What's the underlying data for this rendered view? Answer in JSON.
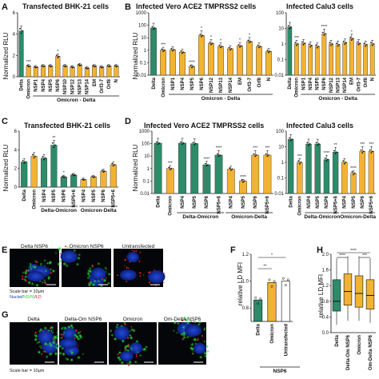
{
  "colors": {
    "green": "#2e8b6a",
    "yellow": "#f2b233",
    "nucleus": "#1a3db8",
    "nsp": "#2bd23a",
    "ld": "#e0222e"
  },
  "legend": {
    "nuclei": "Nuclei",
    "nsp": "NSP6",
    "ld": "LD",
    "slash": "/"
  },
  "scale_bar": "Scale bar = 10μm",
  "panels": {
    "A": {
      "letter": "A",
      "title": "Transfected BHK-21 cells",
      "ylabel": "Normalized RLU",
      "group": "Omicron - Delta"
    },
    "B": {
      "letter": "B",
      "title": "Infected Vero ACE2 TMPRSS2 cells",
      "ylabel": "Normalized RLU",
      "group": "Omicron - Delta"
    },
    "B2": {
      "title": "Infected Calu3 cells",
      "group": "Omicron - Delta"
    },
    "C": {
      "letter": "C",
      "title": "Transfected BHK-21 cells",
      "ylabel": "Normalized RLU",
      "group1": "Delta-Omicron",
      "group2": "Omicron-Delta"
    },
    "D": {
      "letter": "D",
      "title": "Infected Vero ACE2 TMPRSS2 cells",
      "ylabel": "Normalized RLU",
      "group1": "Delta-Omicron",
      "group2": "Omicron-Delta"
    },
    "D2": {
      "title": "Infected Calu3 cells",
      "group1": "Delta-Omicron",
      "group2": "Omicron-Delta"
    },
    "E": {
      "letter": "E",
      "labels": [
        "Delta NSP6",
        "Omicron NSP6",
        "Untransfected"
      ]
    },
    "F": {
      "letter": "F",
      "ylabel": "relative LD MFI",
      "group": "NSP6"
    },
    "G": {
      "letter": "G",
      "labels": [
        "Delta",
        "Delta-Om NSP6",
        "Omicron",
        "Om-Delta NSP6"
      ]
    },
    "H": {
      "letter": "H",
      "ylabel": "relative LD MFI"
    }
  },
  "chart_data": [
    {
      "id": "A",
      "type": "bar",
      "yscale": "linear",
      "ylim": [
        0,
        6
      ],
      "yticks": [
        0,
        2,
        4,
        6
      ],
      "categories": [
        "Delta",
        "Omicron",
        "NSP1",
        "NSP4",
        "NSP5",
        "NSP6",
        "NSP10",
        "NSP12",
        "NSP13",
        "NSP14",
        "EM",
        "Orf3-7",
        "Orf8",
        "N"
      ],
      "values": [
        4.3,
        1.0,
        0.9,
        1.0,
        1.0,
        1.9,
        1.0,
        0.9,
        1.1,
        0.8,
        1.0,
        0.9,
        1.0,
        1.0
      ],
      "colors": [
        "green",
        "yellow",
        "yellow",
        "yellow",
        "yellow",
        "yellow",
        "yellow",
        "yellow",
        "yellow",
        "yellow",
        "yellow",
        "yellow",
        "yellow",
        "yellow"
      ],
      "stars": [
        "",
        "***",
        "",
        "",
        "",
        "*",
        "",
        "",
        "",
        "",
        "",
        "",
        "",
        ""
      ]
    },
    {
      "id": "B",
      "type": "bar",
      "yscale": "log",
      "ylim": [
        0.01,
        1000
      ],
      "yticks": [
        0.01,
        0.1,
        1,
        10,
        100,
        1000
      ],
      "categories": [
        "Delta",
        "Omicron",
        "NSP1",
        "NSP4",
        "NSP5",
        "NSP6",
        "NSP12",
        "NSP13",
        "NSP14",
        "EM",
        "Orf3-7",
        "Orf8",
        "N"
      ],
      "values": [
        60,
        1.0,
        1.1,
        0.7,
        0.05,
        15,
        3.5,
        2.0,
        1.3,
        2.2,
        5,
        2.0,
        0.8
      ],
      "colors": [
        "green",
        "yellow",
        "yellow",
        "yellow",
        "yellow",
        "yellow",
        "yellow",
        "yellow",
        "yellow",
        "yellow",
        "yellow",
        "yellow",
        "yellow"
      ],
      "stars": [
        "",
        "***",
        "",
        "",
        "****",
        "*",
        "*",
        "*",
        "",
        "*",
        "*",
        "",
        ""
      ]
    },
    {
      "id": "B2",
      "type": "bar",
      "yscale": "log",
      "ylim": [
        0.01,
        100
      ],
      "yticks": [
        0.01,
        0.1,
        1,
        10,
        100
      ],
      "categories": [
        "Delta",
        "Omicron",
        "NSP1",
        "NSP4",
        "NSP5",
        "NSP6",
        "NSP12",
        "NSP13",
        "NSP14",
        "EM",
        "Orf3-7",
        "Orf8",
        "N"
      ],
      "values": [
        12,
        1.0,
        1.1,
        0.8,
        0.7,
        4.5,
        1.0,
        0.9,
        1.2,
        2.2,
        1.1,
        0.9,
        1.0
      ],
      "colors": [
        "green",
        "yellow",
        "yellow",
        "yellow",
        "yellow",
        "yellow",
        "yellow",
        "yellow",
        "yellow",
        "yellow",
        "yellow",
        "yellow",
        "yellow"
      ],
      "stars": [
        "",
        "***",
        "",
        "",
        "",
        "****",
        "",
        "",
        "",
        "*",
        "",
        "",
        ""
      ]
    },
    {
      "id": "C",
      "type": "bar",
      "yscale": "linear",
      "ylim": [
        0,
        6
      ],
      "yticks": [
        0,
        2,
        4,
        6
      ],
      "categories": [
        "Delta",
        "Omicron",
        "NSP4",
        "NSP5",
        "NSP6",
        "NSP5+6",
        "NSP4",
        "NSP5",
        "NSP6",
        "NSP5+6"
      ],
      "values": [
        2.7,
        3.3,
        3.1,
        4.5,
        1.1,
        1.3,
        0.8,
        1.1,
        1.7,
        2.4
      ],
      "colors": [
        "green",
        "yellow",
        "green",
        "green",
        "green",
        "green",
        "yellow",
        "yellow",
        "yellow",
        "yellow"
      ],
      "stars": [
        "",
        "",
        "",
        "**",
        "*",
        "",
        "",
        "",
        "",
        ""
      ],
      "groups": [
        {
          "from": 2,
          "to": 5,
          "key": "group1"
        },
        {
          "from": 6,
          "to": 9,
          "key": "group2"
        }
      ]
    },
    {
      "id": "D",
      "type": "bar",
      "yscale": "log",
      "ylim": [
        0.01,
        1000
      ],
      "yticks": [
        0.01,
        0.1,
        1,
        10,
        100,
        1000
      ],
      "categories": [
        "Delta",
        "Omicron",
        "NSP4",
        "NSP5",
        "NSP6",
        "NSP5+6",
        "NSP4",
        "NSP5",
        "NSP6",
        "NSP5+6"
      ],
      "values": [
        110,
        1.0,
        110,
        100,
        2.0,
        12,
        0.9,
        0.1,
        12,
        12
      ],
      "colors": [
        "green",
        "yellow",
        "green",
        "green",
        "green",
        "green",
        "yellow",
        "yellow",
        "yellow",
        "yellow"
      ],
      "stars": [
        "",
        "***",
        "",
        "",
        "****",
        "****",
        "",
        "****",
        "***",
        "***"
      ],
      "groups": [
        {
          "from": 2,
          "to": 5,
          "key": "group1"
        },
        {
          "from": 6,
          "to": 9,
          "key": "group2"
        }
      ]
    },
    {
      "id": "D2",
      "type": "bar",
      "yscale": "log",
      "ylim": [
        0.01,
        100
      ],
      "yticks": [
        0.01,
        0.1,
        1,
        10,
        100
      ],
      "categories": [
        "Delta",
        "Omicron",
        "NSP4",
        "NSP5",
        "NSP6",
        "NSP5+6",
        "NSP4",
        "NSP5",
        "NSP6",
        "NSP5+6"
      ],
      "values": [
        30,
        1.0,
        15,
        15,
        1.5,
        4.5,
        1.0,
        0.2,
        5,
        5
      ],
      "colors": [
        "green",
        "yellow",
        "green",
        "green",
        "green",
        "green",
        "yellow",
        "yellow",
        "yellow",
        "yellow"
      ],
      "stars": [
        "",
        "***",
        "",
        "",
        "****",
        "**",
        "",
        "****",
        "***",
        "***"
      ],
      "groups": [
        {
          "from": 2,
          "to": 5,
          "key": "group1"
        },
        {
          "from": 6,
          "to": 9,
          "key": "group2"
        }
      ]
    },
    {
      "id": "F",
      "type": "bar",
      "yscale": "linear",
      "ylim": [
        0.7,
        1.2
      ],
      "yticks": [
        0.8,
        1.0,
        1.2
      ],
      "categories": [
        "Delta",
        "Omicron",
        "Untransfected"
      ],
      "values": [
        0.86,
        0.99,
        1.0
      ],
      "colors": [
        "green",
        "yellow",
        "white"
      ],
      "brackets": [
        {
          "from": 0,
          "to": 1,
          "label": "**"
        },
        {
          "from": 0,
          "to": 2,
          "label": "*"
        }
      ]
    },
    {
      "id": "H",
      "type": "box",
      "ylim": [
        0,
        2.0
      ],
      "yticks": [
        0.0,
        0.4,
        0.8,
        1.2,
        1.6,
        2.0
      ],
      "categories": [
        "Delta",
        "Delta-Om NSP6",
        "Omicron",
        "Om-Delta NSP6"
      ],
      "boxes": [
        {
          "min": 0.2,
          "q1": 0.55,
          "median": 0.8,
          "q3": 1.35,
          "max": 1.9
        },
        {
          "min": 0.3,
          "q1": 0.7,
          "median": 1.05,
          "q3": 1.5,
          "max": 1.95
        },
        {
          "min": 0.3,
          "q1": 0.65,
          "median": 1.0,
          "q3": 1.45,
          "max": 1.95
        },
        {
          "min": 0.25,
          "q1": 0.6,
          "median": 0.95,
          "q3": 1.35,
          "max": 1.9
        }
      ],
      "colors": [
        "green",
        "yellow",
        "yellow",
        "yellow"
      ],
      "brackets": [
        {
          "from": 0,
          "to": 3,
          "label": "****"
        },
        {
          "from": 0,
          "to": 1,
          "label": "****"
        },
        {
          "from": 2,
          "to": 3,
          "label": "***"
        }
      ]
    }
  ]
}
